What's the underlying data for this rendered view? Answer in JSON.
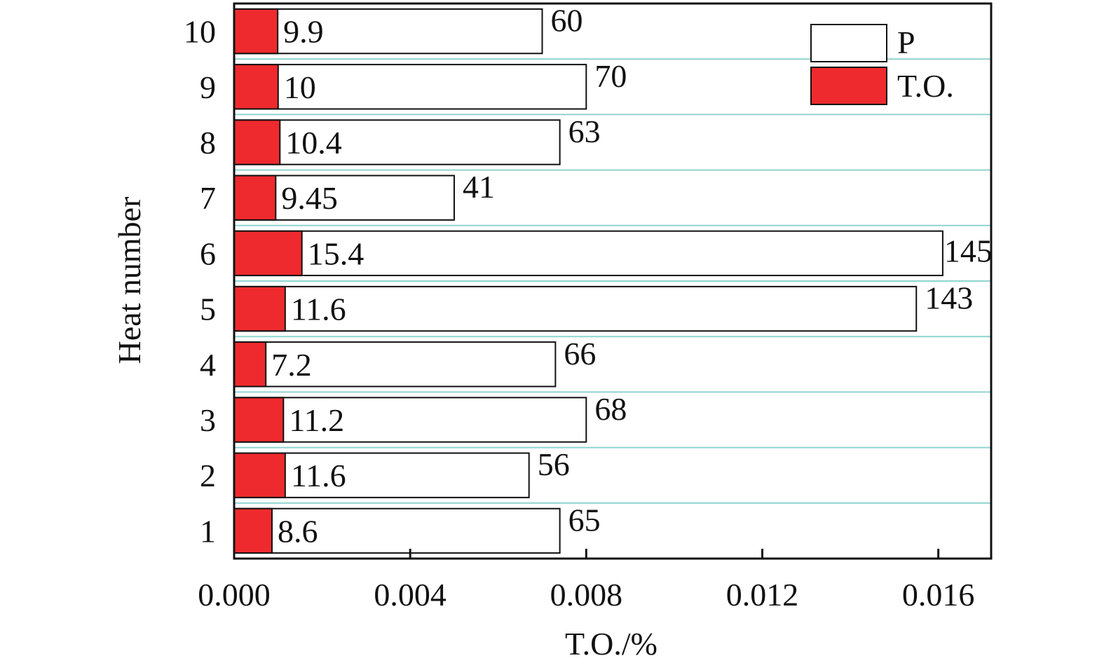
{
  "chart_data": {
    "type": "bar",
    "orientation": "horizontal",
    "xlabel": "T.O./%",
    "ylabel": "Heat number",
    "xlim": [
      0,
      0.0172
    ],
    "xticks": [
      "0.000",
      "0.004",
      "0.008",
      "0.012",
      "0.016"
    ],
    "xtick_values": [
      0,
      0.004,
      0.008,
      0.012,
      0.016
    ],
    "categories": [
      "1",
      "2",
      "3",
      "4",
      "5",
      "6",
      "7",
      "8",
      "9",
      "10"
    ],
    "grid": "horizontal",
    "legend_position": "top-right",
    "series": [
      {
        "name": "P",
        "color": "#ffffff",
        "values": [
          0.0074,
          0.0067,
          0.008,
          0.0073,
          0.0155,
          0.0161,
          0.005,
          0.0074,
          0.008,
          0.007
        ],
        "labels": [
          "65",
          "56",
          "68",
          "66",
          "143",
          "145",
          "41",
          "63",
          "70",
          "60"
        ]
      },
      {
        "name": "T.O.",
        "color": "#ee2a2e",
        "values": [
          0.00086,
          0.00116,
          0.00112,
          0.00072,
          0.00116,
          0.00154,
          0.000945,
          0.00104,
          0.001,
          0.00099
        ],
        "labels": [
          "8.6",
          "11.6",
          "11.2",
          "7.2",
          "11.6",
          "15.4",
          "9.45",
          "10.4",
          "10",
          "9.9"
        ]
      }
    ]
  }
}
